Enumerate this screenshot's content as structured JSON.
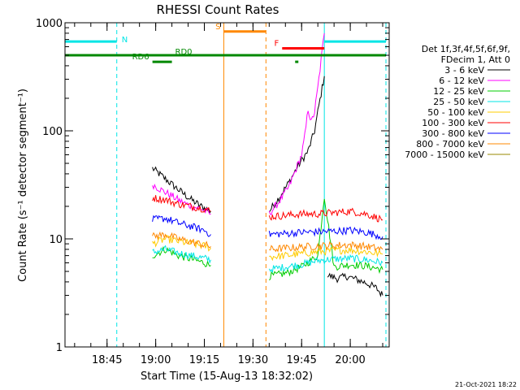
{
  "chart_data": {
    "type": "line",
    "title": "RHESSI Count Rates",
    "xlabel": "Start Time (15-Aug-13 18:32:02)",
    "ylabel": "Count Rate (s⁻¹ detector segment⁻¹)",
    "y_scale": "log",
    "ylim": [
      1,
      1000
    ],
    "y_ticks": [
      "1",
      "10",
      "100",
      "1000"
    ],
    "xlim": [
      "18:32:02",
      "20:12:00"
    ],
    "x_ticks": [
      "18:45",
      "19:00",
      "19:15",
      "19:30",
      "19:45",
      "20:00"
    ],
    "footer_date": "21-Oct-2021 18:22",
    "legend": {
      "placement": "right",
      "header": [
        "Det 1f,3f,4f,5f,6f,9f,",
        "FDecim 1, Att 0"
      ]
    },
    "series": [
      {
        "name": "3 - 6 keV",
        "color": "#000000",
        "segments": [
          {
            "x": [
              "18:59",
              "19:02",
              "19:05",
              "19:08",
              "19:11",
              "19:14",
              "19:17"
            ],
            "y": [
              45,
              38,
              32,
              27,
              23,
              20,
              18
            ]
          },
          {
            "x": [
              "19:35",
              "19:38",
              "19:41",
              "19:44",
              "19:47",
              "19:49",
              "19:50",
              "19:51",
              "19:52"
            ],
            "y": [
              18,
              24,
              33,
              48,
              65,
              100,
              150,
              220,
              320
            ]
          },
          {
            "x": [
              "19:53",
              "19:56",
              "19:59",
              "20:02",
              "20:05",
              "20:08",
              "20:10"
            ],
            "y": [
              4.6,
              4.3,
              4.5,
              4.2,
              3.9,
              3.5,
              3.0
            ]
          }
        ]
      },
      {
        "name": "6 - 12 keV",
        "color": "#ff00ff",
        "segments": [
          {
            "x": [
              "18:59",
              "19:02",
              "19:05",
              "19:08",
              "19:11",
              "19:14",
              "19:17"
            ],
            "y": [
              32,
              28,
              25,
              22,
              20,
              19,
              17
            ]
          },
          {
            "x": [
              "19:35",
              "19:38",
              "19:41",
              "19:43",
              "19:45",
              "19:46",
              "19:47",
              "19:48",
              "19:49",
              "19:50",
              "19:51",
              "19:52"
            ],
            "y": [
              17,
              22,
              30,
              42,
              60,
              90,
              160,
              120,
              150,
              250,
              450,
              800
            ]
          }
        ]
      },
      {
        "name": "12 - 25 keV",
        "color": "#00cc00",
        "segments": [
          {
            "x": [
              "18:59",
              "19:03",
              "19:07",
              "19:11",
              "19:15",
              "19:17"
            ],
            "y": [
              7,
              8,
              7,
              6.5,
              6,
              5.7
            ]
          },
          {
            "x": [
              "19:35",
              "19:40",
              "19:45",
              "19:50",
              "19:52",
              "19:55",
              "20:00",
              "20:05",
              "20:10"
            ],
            "y": [
              4.5,
              4.8,
              5.5,
              7,
              25,
              5.5,
              5.8,
              5.6,
              5.2
            ]
          }
        ]
      },
      {
        "name": "25 - 50 keV",
        "color": "#00e5e5",
        "segments": [
          {
            "x": [
              "18:59",
              "19:03",
              "19:07",
              "19:11",
              "19:15",
              "19:17"
            ],
            "y": [
              7.5,
              8,
              7.4,
              7,
              6.6,
              6.4
            ]
          },
          {
            "x": [
              "19:35",
              "19:40",
              "19:45",
              "19:50",
              "19:55",
              "20:00",
              "20:05",
              "20:10"
            ],
            "y": [
              5.2,
              5.5,
              5.8,
              6.3,
              6.5,
              6.6,
              6.4,
              6.0
            ]
          }
        ]
      },
      {
        "name": "50 - 100 keV",
        "color": "#ffcc00",
        "segments": [
          {
            "x": [
              "18:59",
              "19:03",
              "19:07",
              "19:11",
              "19:15",
              "19:17"
            ],
            "y": [
              9,
              10,
              9.5,
              9,
              8.6,
              8.2
            ]
          },
          {
            "x": [
              "19:35",
              "19:40",
              "19:45",
              "19:50",
              "19:55",
              "20:00",
              "20:05",
              "20:10"
            ],
            "y": [
              6.8,
              7,
              7.3,
              7.6,
              7.8,
              7.9,
              7.6,
              7.2
            ]
          }
        ]
      },
      {
        "name": "100 - 300 keV",
        "color": "#ff0000",
        "segments": [
          {
            "x": [
              "18:59",
              "19:03",
              "19:07",
              "19:11",
              "19:15",
              "19:17"
            ],
            "y": [
              24,
              23,
              21,
              20,
              19,
              18
            ]
          },
          {
            "x": [
              "19:35",
              "19:40",
              "19:45",
              "19:50",
              "19:55",
              "20:00",
              "20:05",
              "20:10"
            ],
            "y": [
              16,
              16.5,
              17,
              17,
              17.5,
              18,
              17,
              15
            ]
          }
        ]
      },
      {
        "name": "300 - 800 keV",
        "color": "#0000ff",
        "segments": [
          {
            "x": [
              "18:59",
              "19:03",
              "19:07",
              "19:11",
              "19:15",
              "19:17"
            ],
            "y": [
              15,
              15.5,
              14,
              13,
              12,
              11
            ]
          },
          {
            "x": [
              "19:35",
              "19:40",
              "19:45",
              "19:50",
              "19:55",
              "20:00",
              "20:05",
              "20:10"
            ],
            "y": [
              11,
              11.2,
              11.5,
              11.6,
              11.8,
              12,
              11.5,
              10.5
            ]
          }
        ]
      },
      {
        "name": "800 - 7000 keV",
        "color": "#ff8800",
        "segments": [
          {
            "x": [
              "18:59",
              "19:03",
              "19:07",
              "19:11",
              "19:15",
              "19:17"
            ],
            "y": [
              10.5,
              11,
              10,
              9.4,
              8.8,
              8.5
            ]
          },
          {
            "x": [
              "19:35",
              "19:40",
              "19:45",
              "19:50",
              "19:55",
              "20:00",
              "20:05",
              "20:10"
            ],
            "y": [
              8,
              8.2,
              8.4,
              8.6,
              8.7,
              8.8,
              8.5,
              8
            ]
          }
        ]
      },
      {
        "name": "7000 - 15000 keV",
        "color": "#998800",
        "segments": []
      }
    ],
    "vertical_lines": [
      {
        "x": "18:32:02",
        "color": "#00e5e5",
        "style": "solid"
      },
      {
        "x": "18:48",
        "color": "#00e5e5",
        "style": "dashed"
      },
      {
        "x": "19:21",
        "color": "#ff8800",
        "style": "solid"
      },
      {
        "x": "19:34",
        "color": "#ff8800",
        "style": "dashed"
      },
      {
        "x": "19:52",
        "color": "#00e5e5",
        "style": "solid"
      },
      {
        "x": "20:11",
        "color": "#00e5e5",
        "style": "dashed"
      }
    ],
    "flag_bars": [
      {
        "label": "N",
        "x": [
          "18:32:02",
          "18:48"
        ],
        "y": 670,
        "color": "#00e5e5"
      },
      {
        "label": "",
        "x": [
          "19:52",
          "20:11"
        ],
        "y": 670,
        "color": "#00e5e5"
      },
      {
        "label": "S",
        "x": [
          "19:21",
          "19:34"
        ],
        "y": 830,
        "color": "#ff8800"
      },
      {
        "label": "F",
        "x": [
          "19:39",
          "19:52"
        ],
        "y": 580,
        "color": "#ff0000"
      },
      {
        "label": "",
        "x": [
          "18:32:02",
          "20:11"
        ],
        "y": 500,
        "color": "#008800"
      },
      {
        "label": "RD0",
        "x": [
          "19:09",
          "19:17"
        ],
        "y": 500,
        "color": "#008800"
      },
      {
        "label": "RD6",
        "x": [
          "18:59",
          "19:05"
        ],
        "y": 435,
        "color": "#008800"
      },
      {
        "label": "",
        "x": [
          "19:43",
          "19:44"
        ],
        "y": 435,
        "color": "#008800"
      }
    ]
  }
}
